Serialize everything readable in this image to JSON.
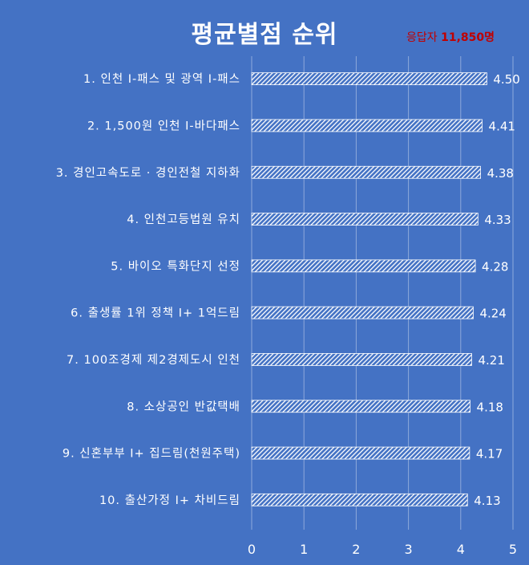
{
  "title": "평균별점 순위",
  "respondents": {
    "label": "응답자",
    "count": "11,850명"
  },
  "colors": {
    "background": "#4472c4",
    "text": "#ffffff",
    "bar_fill": "#ffffff",
    "respondents": "#c00000",
    "grid": "#8ea9db"
  },
  "chart_data": {
    "type": "bar",
    "orientation": "horizontal",
    "title": "평균별점 순위",
    "categories": [
      "1. 인천 I-패스 및 광역 I-패스",
      "2. 1,500원 인천 I-바다패스",
      "3. 경인고속도로 · 경인전철 지하화",
      "4. 인천고등법원 유치",
      "5. 바이오 특화단지 선정",
      "6. 출생률 1위 정책  I+ 1억드림",
      "7. 100조경제 제2경제도시 인천",
      "8. 소상공인 반값택배",
      "9. 신혼부부 I+ 집드림(천원주택)",
      "10. 출산가정 I+ 차비드림"
    ],
    "values": [
      4.5,
      4.41,
      4.38,
      4.33,
      4.28,
      4.24,
      4.21,
      4.18,
      4.17,
      4.13
    ],
    "value_labels": [
      "4.50",
      "4.41",
      "4.38",
      "4.33",
      "4.28",
      "4.24",
      "4.21",
      "4.18",
      "4.17",
      "4.13"
    ],
    "xlim": [
      0,
      5
    ],
    "xticks": [
      "0",
      "1",
      "2",
      "3",
      "4",
      "5"
    ],
    "grid": true,
    "bar_pattern": "diagonal-hatch"
  }
}
